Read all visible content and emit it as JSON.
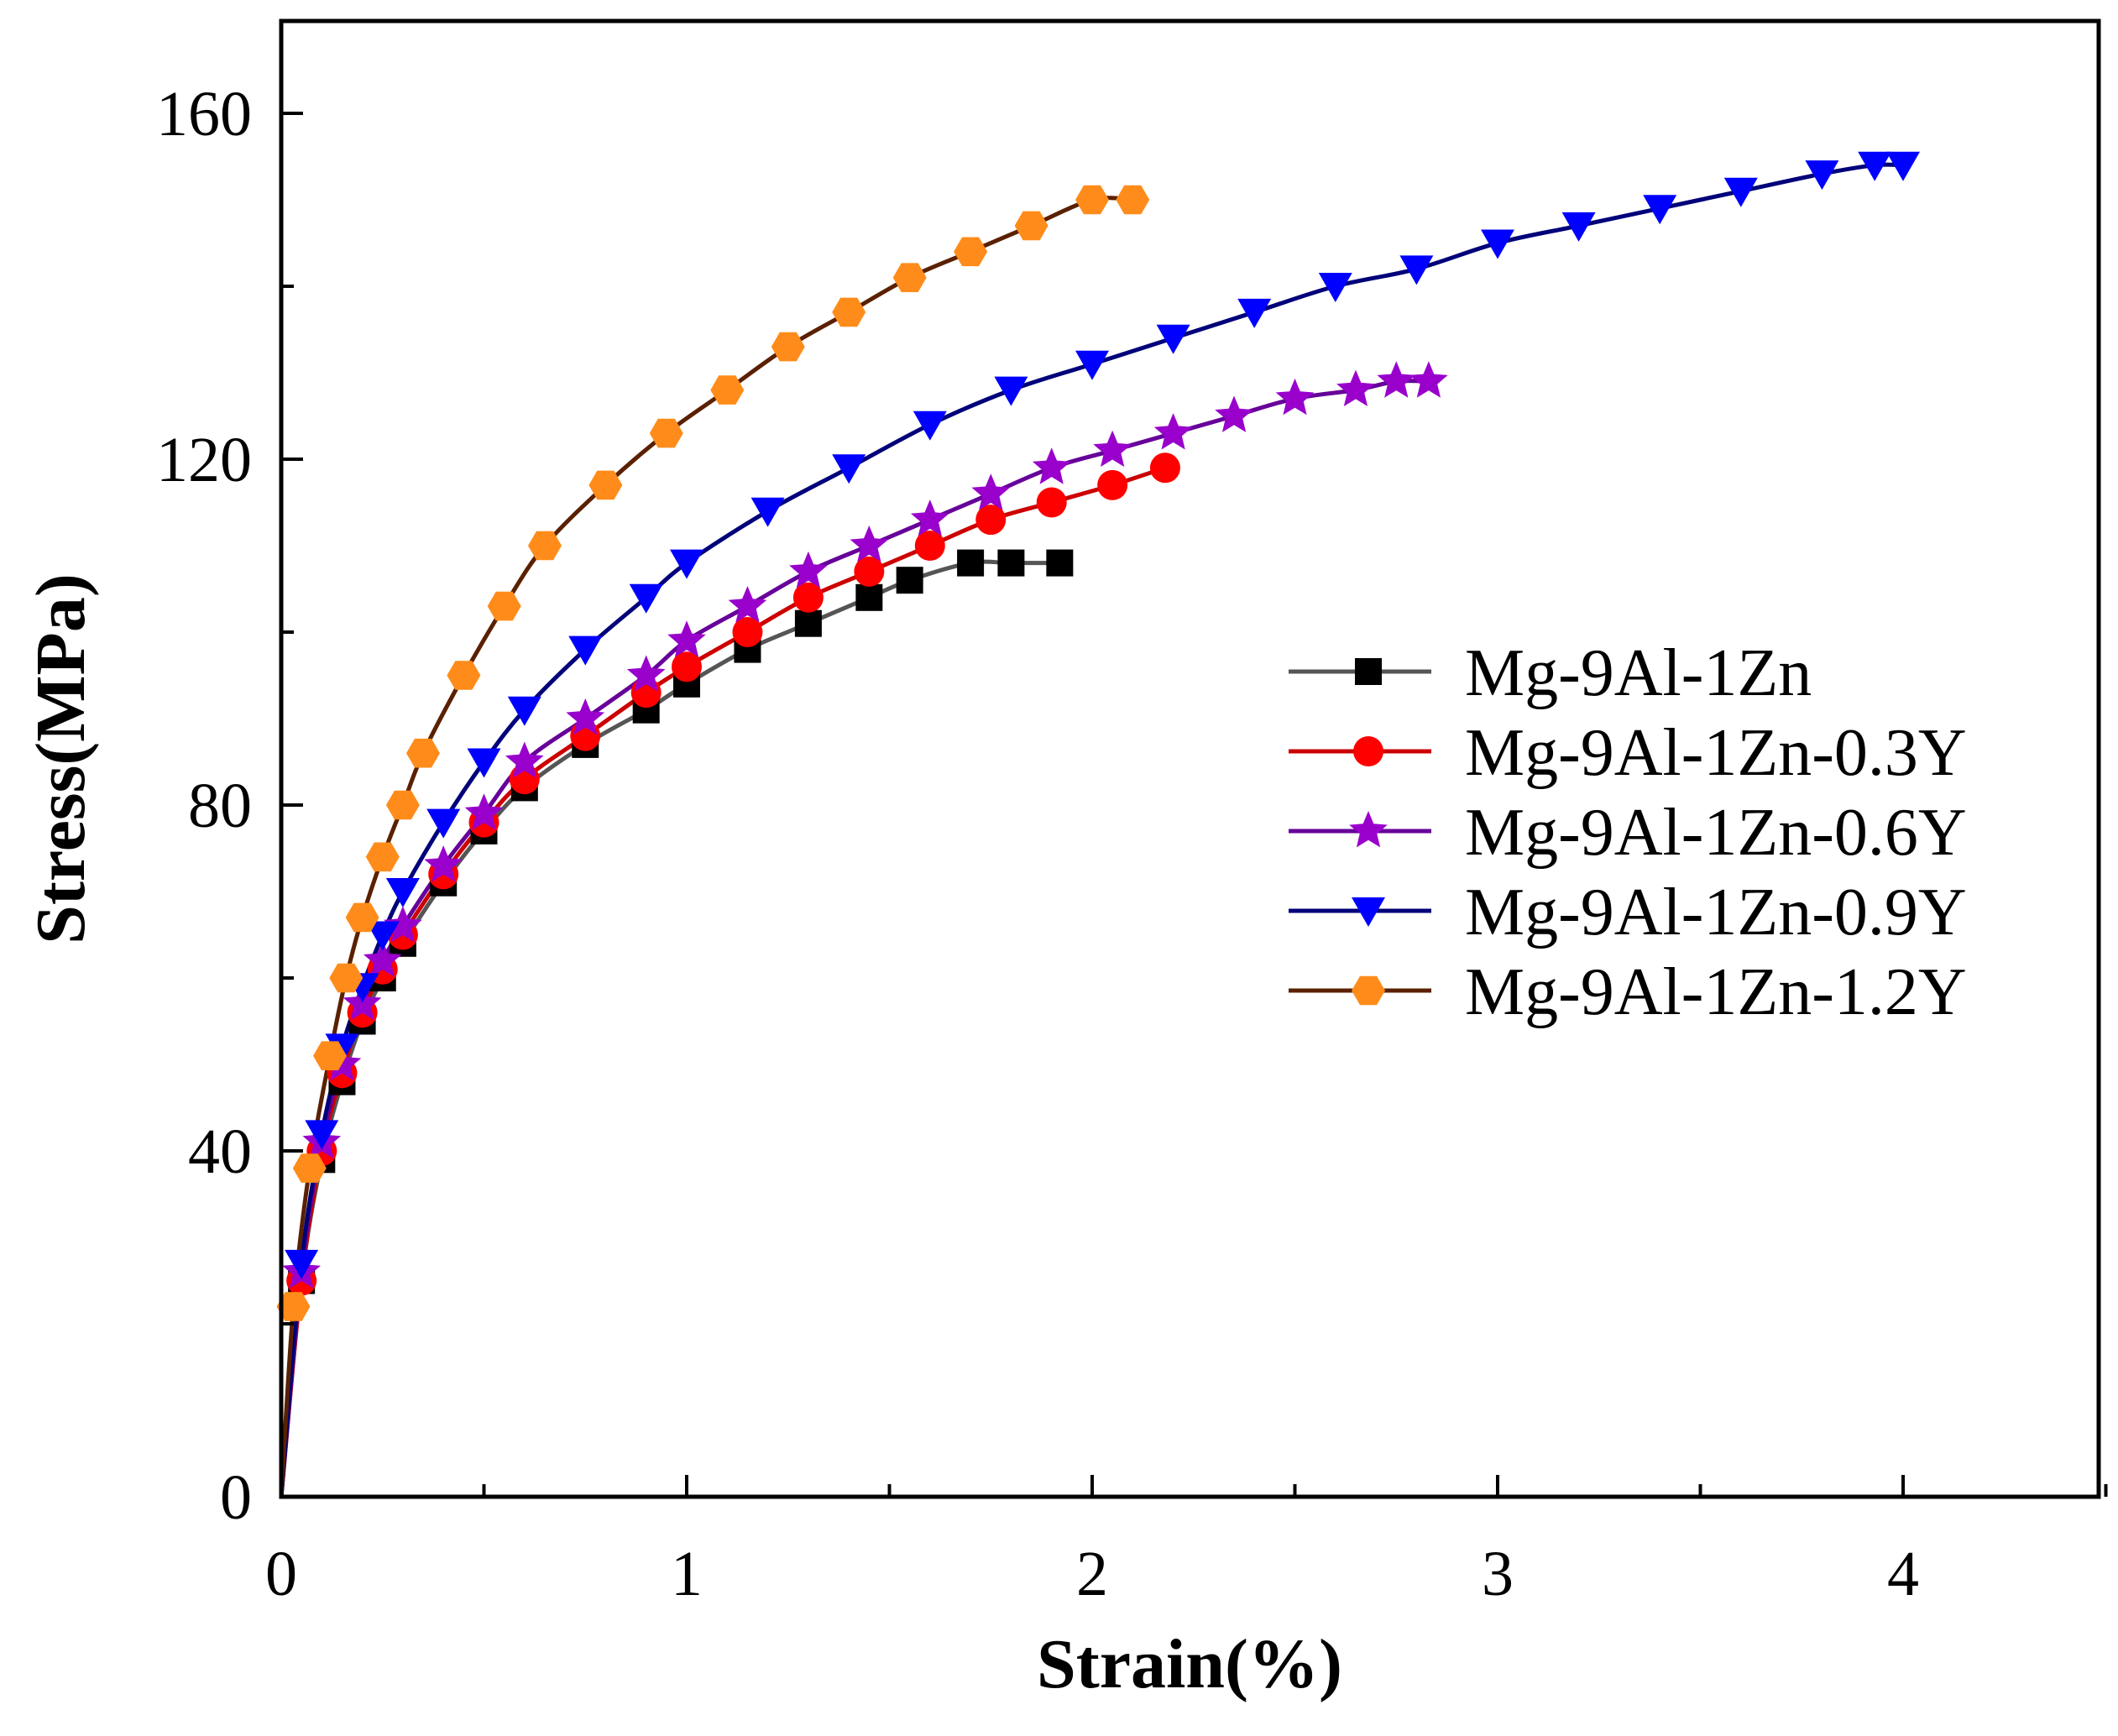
{
  "chart_data": {
    "type": "line",
    "title": "",
    "xlabel": "Strain(%)",
    "ylabel": "Stress(MPa)",
    "xlim": [
      0,
      4.5
    ],
    "ylim": [
      0,
      170
    ],
    "xticks": [
      0,
      1,
      2,
      3,
      4
    ],
    "xtick_labels": [
      "0",
      "1",
      "2",
      "3",
      "4"
    ],
    "yticks": [
      0,
      40,
      80,
      120,
      160
    ],
    "ytick_labels": [
      "0",
      "40",
      "80",
      "120",
      "160"
    ],
    "grid": false,
    "legend_position": "right",
    "series": [
      {
        "name": "Mg-9Al-1Zn",
        "line_color": "#555555",
        "marker_color": "#000000",
        "marker": "square",
        "x": [
          0,
          0.05,
          0.1,
          0.15,
          0.2,
          0.25,
          0.3,
          0.4,
          0.5,
          0.6,
          0.75,
          0.9,
          1.0,
          1.15,
          1.3,
          1.45,
          1.55,
          1.7,
          1.8,
          1.92
        ],
        "y": [
          0,
          25,
          39,
          48,
          55,
          60,
          64,
          71,
          77,
          82,
          87,
          91,
          94,
          98,
          101,
          104,
          106,
          108,
          108,
          108
        ]
      },
      {
        "name": "Mg-9Al-1Zn-0.3Y",
        "line_color": "#cc0000",
        "marker_color": "#ff0000",
        "marker": "circle",
        "x": [
          0,
          0.05,
          0.1,
          0.15,
          0.2,
          0.25,
          0.3,
          0.4,
          0.5,
          0.6,
          0.75,
          0.9,
          1.0,
          1.15,
          1.3,
          1.45,
          1.6,
          1.75,
          1.9,
          2.05,
          2.18
        ],
        "y": [
          0,
          25,
          40,
          49,
          56,
          61,
          65,
          72,
          78,
          83,
          88,
          93,
          96,
          100,
          104,
          107,
          110,
          113,
          115,
          117,
          119
        ]
      },
      {
        "name": "Mg-9Al-1Zn-0.6Y",
        "line_color": "#660099",
        "marker_color": "#9900cc",
        "marker": "star",
        "x": [
          0,
          0.05,
          0.1,
          0.15,
          0.2,
          0.25,
          0.3,
          0.4,
          0.5,
          0.6,
          0.75,
          0.9,
          1.0,
          1.15,
          1.3,
          1.45,
          1.6,
          1.75,
          1.9,
          2.05,
          2.2,
          2.35,
          2.5,
          2.65,
          2.75,
          2.83
        ],
        "y": [
          0,
          26,
          41,
          50,
          57,
          62,
          66,
          73,
          79,
          85,
          90,
          95,
          99,
          103,
          107,
          110,
          113,
          116,
          119,
          121,
          123,
          125,
          127,
          128,
          129,
          129
        ]
      },
      {
        "name": "Mg-9Al-1Zn-0.9Y",
        "line_color": "#00007a",
        "marker_color": "#0000ff",
        "marker": "triangle-down",
        "x": [
          0,
          0.05,
          0.1,
          0.15,
          0.2,
          0.25,
          0.3,
          0.4,
          0.5,
          0.6,
          0.75,
          0.9,
          1.0,
          1.2,
          1.4,
          1.6,
          1.8,
          2.0,
          2.2,
          2.4,
          2.6,
          2.8,
          3.0,
          3.2,
          3.4,
          3.6,
          3.8,
          3.93,
          4.0
        ],
        "y": [
          0,
          27,
          42,
          52,
          59,
          65,
          70,
          78,
          85,
          91,
          98,
          104,
          108,
          114,
          119,
          124,
          128,
          131,
          134,
          137,
          140,
          142,
          145,
          147,
          149,
          151,
          153,
          154,
          154
        ]
      },
      {
        "name": "Mg-9Al-1Zn-1.2Y",
        "line_color": "#5a2000",
        "marker_color": "#ff8c1a",
        "marker": "hexagon",
        "x": [
          0,
          0.03,
          0.07,
          0.12,
          0.16,
          0.2,
          0.25,
          0.3,
          0.35,
          0.45,
          0.55,
          0.65,
          0.8,
          0.95,
          1.1,
          1.25,
          1.4,
          1.55,
          1.7,
          1.85,
          2.0,
          2.1
        ],
        "y": [
          0,
          22,
          38,
          51,
          60,
          67,
          74,
          80,
          86,
          95,
          103,
          110,
          117,
          123,
          128,
          133,
          137,
          141,
          144,
          147,
          150,
          150
        ]
      }
    ]
  }
}
